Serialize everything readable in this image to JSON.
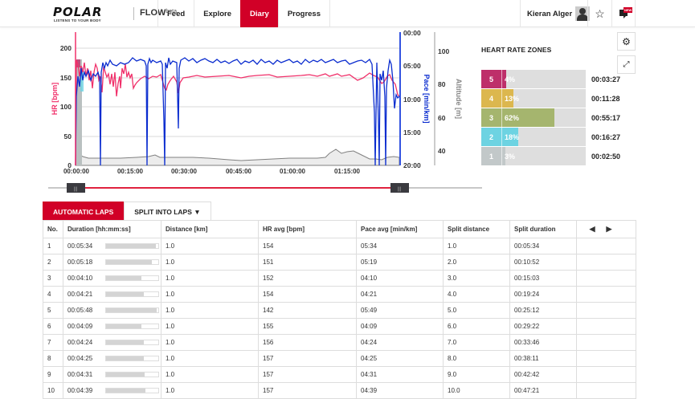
{
  "header": {
    "brand": "POLAR",
    "tagline": "LISTENS TO YOUR BODY",
    "product": "FLOW",
    "product_badge": "beta",
    "nav": [
      {
        "label": "Feed",
        "active": false
      },
      {
        "label": "Explore",
        "active": false
      },
      {
        "label": "Diary",
        "active": true
      },
      {
        "label": "Progress",
        "active": false
      }
    ],
    "user_name": "Kieran Alger",
    "icons": [
      "avatar-icon",
      "star-icon",
      "message-icon"
    ],
    "new_badge": "NEW"
  },
  "colors": {
    "accent": "#d10027",
    "hr_line": "#f0306a",
    "pace_line": "#0a2ccf",
    "altitude_line": "#777777",
    "altitude_fill": "#e9e9e9",
    "zone5": "#be2f6a",
    "zone4": "#dcb74e",
    "zone3": "#a5b56e",
    "zone2": "#6dd3e2",
    "zone1": "#c2c8c9"
  },
  "chart_data": {
    "type": "line",
    "title": "",
    "xlabel": "",
    "x_ticks": [
      "00:00:00",
      "00:15:00",
      "00:30:00",
      "00:45:00",
      "01:00:00",
      "01:15:00"
    ],
    "y_left": {
      "label": "HR [bpm]",
      "ticks": [
        0,
        50,
        100,
        150,
        200
      ],
      "range": [
        0,
        225
      ]
    },
    "y_right_pace": {
      "label": "Pace [min/km]",
      "ticks": [
        "00:00",
        "05:00",
        "10:00",
        "15:00",
        "20:00"
      ]
    },
    "y_right_altitude": {
      "label": "Altitude [m]",
      "ticks": [
        40,
        60,
        80,
        100
      ]
    },
    "x_minutes": [
      0,
      2,
      4,
      6,
      7,
      8,
      10,
      12,
      15,
      18,
      20,
      21,
      23,
      25,
      27,
      30,
      35,
      40,
      45,
      50,
      55,
      60,
      65,
      70,
      75,
      78,
      80,
      82,
      84,
      86,
      88,
      89
    ],
    "series": [
      {
        "name": "HR [bpm]",
        "values": [
          175,
          165,
          160,
          168,
          120,
          170,
          135,
          145,
          152,
          155,
          140,
          128,
          150,
          120,
          155,
          157,
          156,
          157,
          158,
          156,
          157,
          158,
          157,
          158,
          160,
          152,
          160,
          150,
          135,
          145,
          160,
          120
        ]
      },
      {
        "name": "Pace [min/km]",
        "values": [
          "06:30",
          "07:00",
          "06:30",
          "06:00",
          "20:00",
          "05:30",
          "05:00",
          "05:00",
          "04:30",
          "05:00",
          "13:00",
          "20:00",
          "04:30",
          "20:00",
          "04:40",
          "05:10",
          "05:10",
          "05:00",
          "05:10",
          "05:00",
          "05:10",
          "05:00",
          "05:20",
          "05:10",
          "05:00",
          "05:30",
          "20:00",
          "05:00",
          "16:00",
          "05:00",
          "12:00",
          "08:00"
        ]
      },
      {
        "name": "Altitude [m]",
        "values": [
          38,
          37,
          36,
          35,
          35,
          35,
          35,
          35,
          35,
          35,
          36,
          36,
          38,
          35,
          35,
          35,
          34,
          34,
          34,
          35,
          35,
          35,
          35,
          38,
          38,
          35,
          32,
          32,
          33,
          34,
          35,
          35
        ]
      }
    ],
    "hr_zones": [
      {
        "zone": "5",
        "percent": 4,
        "time": "00:03:27"
      },
      {
        "zone": "4",
        "percent": 13,
        "time": "00:11:28"
      },
      {
        "zone": "3",
        "percent": 62,
        "time": "00:55:17"
      },
      {
        "zone": "2",
        "percent": 18,
        "time": "00:16:27"
      },
      {
        "zone": "1",
        "percent": 3,
        "time": "00:02:50"
      }
    ]
  },
  "chart_axis": {
    "hr_label": "HR [bpm]",
    "pace_label": "Pace [min/km]",
    "alt_label": "Altitude [m]"
  },
  "hr_zones_panel": {
    "title": "HEART RATE ZONES",
    "rows": [
      {
        "zone": "5",
        "pct_label": "4%",
        "time": "00:03:27"
      },
      {
        "zone": "4",
        "pct_label": "13%",
        "time": "00:11:28"
      },
      {
        "zone": "3",
        "pct_label": "62%",
        "time": "00:55:17"
      },
      {
        "zone": "2",
        "pct_label": "18%",
        "time": "00:16:27"
      },
      {
        "zone": "1",
        "pct_label": "3%",
        "time": "00:02:50"
      }
    ]
  },
  "range_slider": {
    "start_handle": "|||",
    "end_handle": "|||"
  },
  "laps": {
    "tabs": [
      {
        "label": "AUTOMATIC LAPS",
        "active": true
      },
      {
        "label": "SPLIT INTO LAPS ▼",
        "active": false
      }
    ],
    "columns": [
      "No.",
      "Duration [hh:mm:ss]",
      "Distance [km]",
      "HR avg [bpm]",
      "Pace avg [min/km]",
      "Split distance",
      "Split duration"
    ],
    "pager": {
      "prev": "◀",
      "next": "▶"
    },
    "rows": [
      {
        "no": "1",
        "duration": "00:05:34",
        "bar": 95,
        "distance": "1.0",
        "hr": "154",
        "pace": "05:34",
        "split_distance": "1.0",
        "split_duration": "00:05:34"
      },
      {
        "no": "2",
        "duration": "00:05:18",
        "bar": 87,
        "distance": "1.0",
        "hr": "151",
        "pace": "05:19",
        "split_distance": "2.0",
        "split_duration": "00:10:52"
      },
      {
        "no": "3",
        "duration": "00:04:10",
        "bar": 68,
        "distance": "1.0",
        "hr": "152",
        "pace": "04:10",
        "split_distance": "3.0",
        "split_duration": "00:15:03"
      },
      {
        "no": "4",
        "duration": "00:04:21",
        "bar": 72,
        "distance": "1.0",
        "hr": "154",
        "pace": "04:21",
        "split_distance": "4.0",
        "split_duration": "00:19:24"
      },
      {
        "no": "5",
        "duration": "00:05:48",
        "bar": 97,
        "distance": "1.0",
        "hr": "142",
        "pace": "05:49",
        "split_distance": "5.0",
        "split_duration": "00:25:12"
      },
      {
        "no": "6",
        "duration": "00:04:09",
        "bar": 68,
        "distance": "1.0",
        "hr": "155",
        "pace": "04:09",
        "split_distance": "6.0",
        "split_duration": "00:29:22"
      },
      {
        "no": "7",
        "duration": "00:04:24",
        "bar": 72,
        "distance": "1.0",
        "hr": "156",
        "pace": "04:24",
        "split_distance": "7.0",
        "split_duration": "00:33:46"
      },
      {
        "no": "8",
        "duration": "00:04:25",
        "bar": 72,
        "distance": "1.0",
        "hr": "157",
        "pace": "04:25",
        "split_distance": "8.0",
        "split_duration": "00:38:11"
      },
      {
        "no": "9",
        "duration": "00:04:31",
        "bar": 74,
        "distance": "1.0",
        "hr": "157",
        "pace": "04:31",
        "split_distance": "9.0",
        "split_duration": "00:42:42"
      },
      {
        "no": "10",
        "duration": "00:04:39",
        "bar": 76,
        "distance": "1.0",
        "hr": "157",
        "pace": "04:39",
        "split_distance": "10.0",
        "split_duration": "00:47:21"
      }
    ]
  }
}
